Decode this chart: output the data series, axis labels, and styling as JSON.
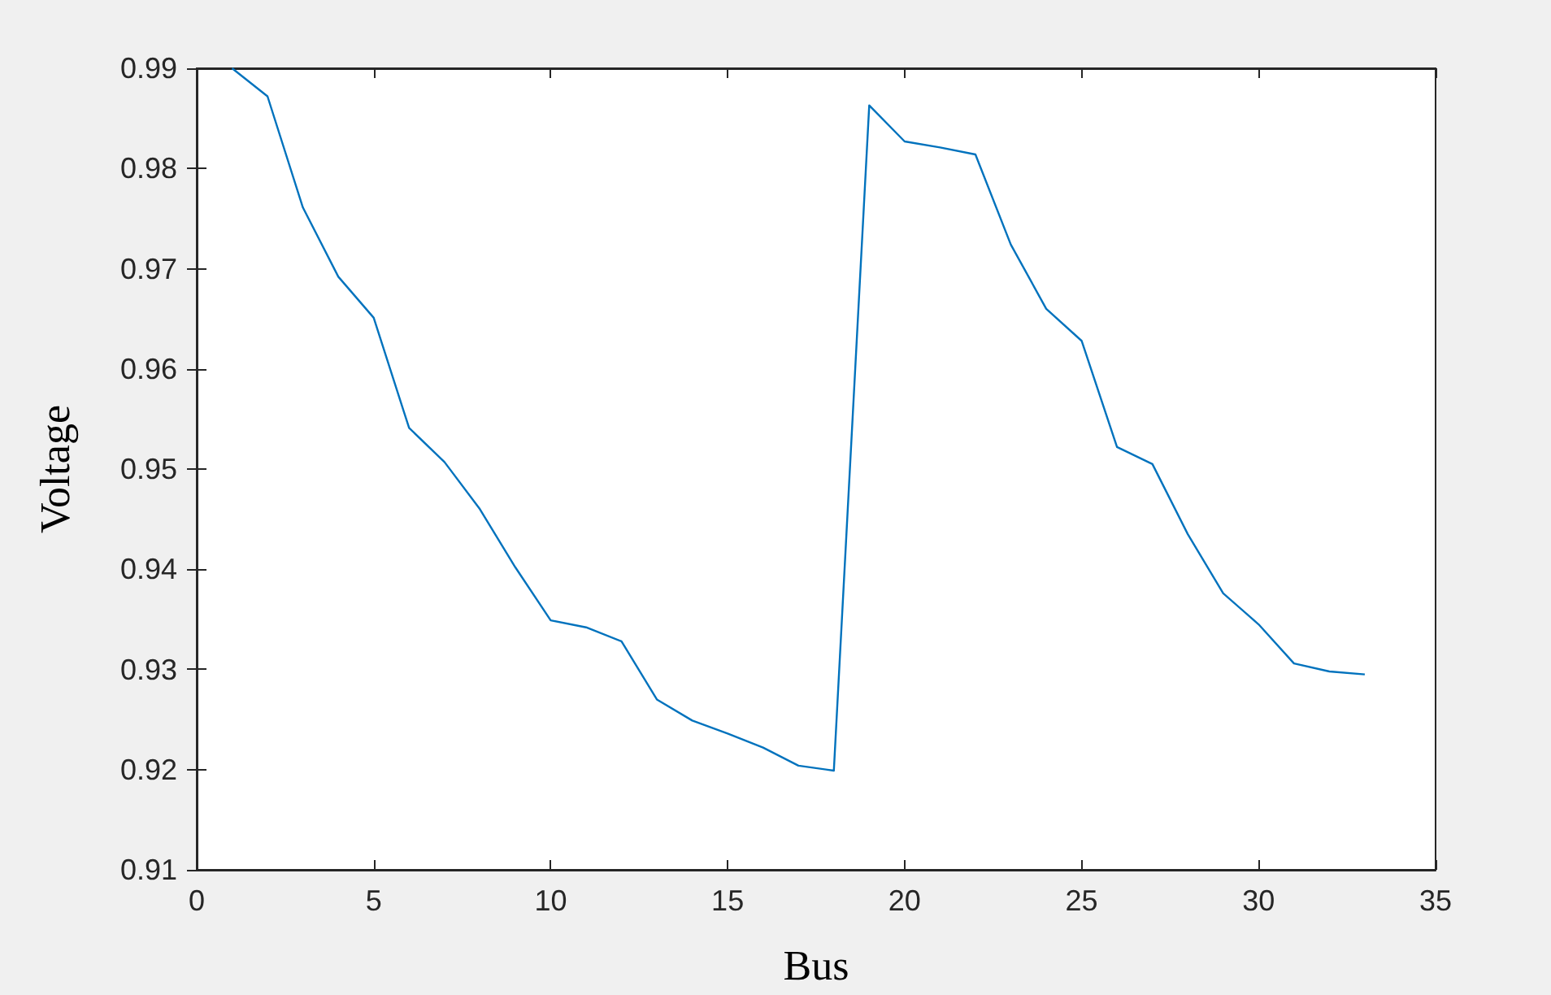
{
  "chart_data": {
    "type": "line",
    "xlabel": "Bus",
    "ylabel": "Voltage",
    "x": [
      1,
      2,
      3,
      4,
      5,
      6,
      7,
      8,
      9,
      10,
      11,
      12,
      13,
      14,
      15,
      16,
      17,
      18,
      19,
      20,
      21,
      22,
      23,
      24,
      25,
      26,
      27,
      28,
      29,
      30,
      31,
      32,
      33
    ],
    "series": [
      {
        "color": "#0072bd",
        "values": [
          0.99,
          0.9872,
          0.9761,
          0.9692,
          0.9651,
          0.9541,
          0.9507,
          0.946,
          0.9402,
          0.9349,
          0.9342,
          0.9328,
          0.927,
          0.9249,
          0.9236,
          0.9222,
          0.9204,
          0.9199,
          0.9863,
          0.9827,
          0.9821,
          0.9814,
          0.9724,
          0.966,
          0.9628,
          0.9522,
          0.9505,
          0.9435,
          0.9376,
          0.9345,
          0.9306,
          0.9298,
          0.9295
        ]
      }
    ],
    "xlim": [
      0,
      35
    ],
    "xticks": [
      0,
      5,
      10,
      15,
      20,
      25,
      30,
      35
    ],
    "ylim": [
      0.91,
      0.99
    ],
    "yticks": [
      0.91,
      0.92,
      0.93,
      0.94,
      0.95,
      0.96,
      0.97,
      0.98,
      0.99
    ],
    "grid": false,
    "marker": "none",
    "line_style": "solid"
  }
}
